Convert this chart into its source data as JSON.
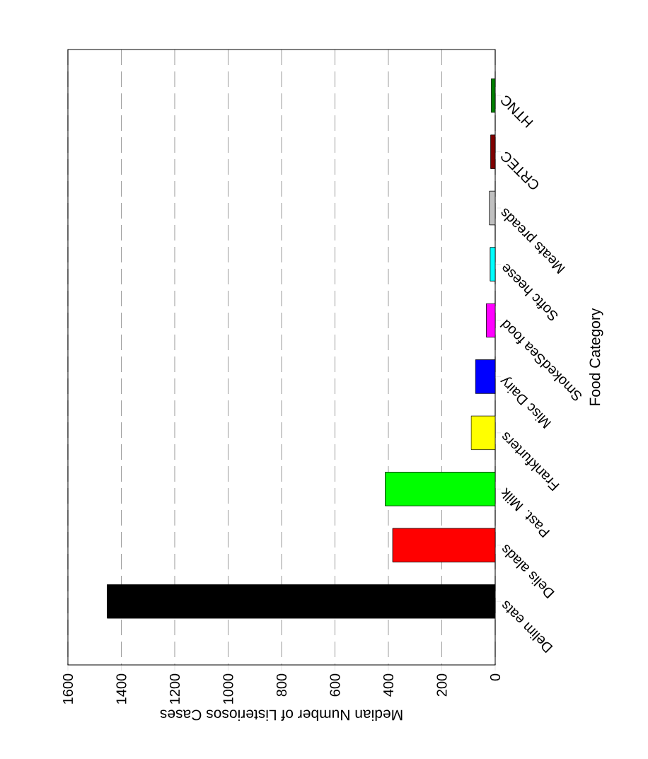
{
  "chart_data": {
    "type": "bar",
    "orientation": "horizontal",
    "categories": [
      "HTNC",
      "CRTEC",
      "Meats preads",
      "Softc heese",
      "SmokedSea food",
      "Misc Dairy",
      "Frankfurters",
      "Past. Milk",
      "Delis alads",
      "Delim eats"
    ],
    "values": [
      15,
      17,
      22,
      19,
      33,
      74,
      90,
      412,
      384,
      1453
    ],
    "colors": [
      "#008000",
      "#800000",
      "#c0c0c0",
      "#00ffff",
      "#ff00ff",
      "#0000ff",
      "#ffff00",
      "#00ff00",
      "#ff0000",
      "#000000"
    ],
    "xlabel": "Median Number of Listeriosos Cases",
    "ylabel": "Food Category",
    "xlim": [
      1600,
      0
    ],
    "xticks": [
      0,
      200,
      400,
      600,
      800,
      1000,
      1200,
      1400,
      1600
    ],
    "grid": "x"
  }
}
